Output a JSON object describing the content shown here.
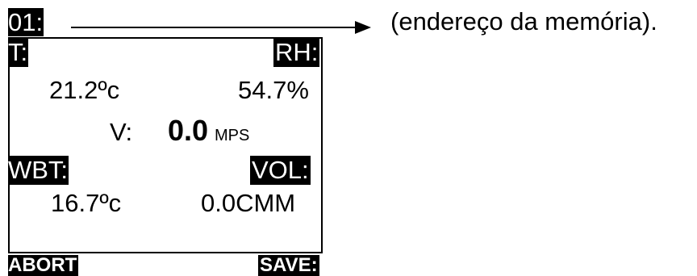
{
  "memory": {
    "address_label": "01:",
    "annotation": "(endereço da memória)."
  },
  "display": {
    "temp_label": "T:",
    "temp_value": "21.2ºc",
    "rh_label": "RH:",
    "rh_value": "54.7%",
    "velocity_label": "V:",
    "velocity_value": "0.0",
    "velocity_unit": "MPS",
    "wbt_label": "WBT:",
    "wbt_value": "16.7ºc",
    "vol_label": "VOL:",
    "vol_value": "0.0CMM"
  },
  "softkeys": {
    "abort_label": "ABORT",
    "save_label": "SAVE:"
  },
  "colors": {
    "background": "#ffffff",
    "foreground": "#000000"
  }
}
